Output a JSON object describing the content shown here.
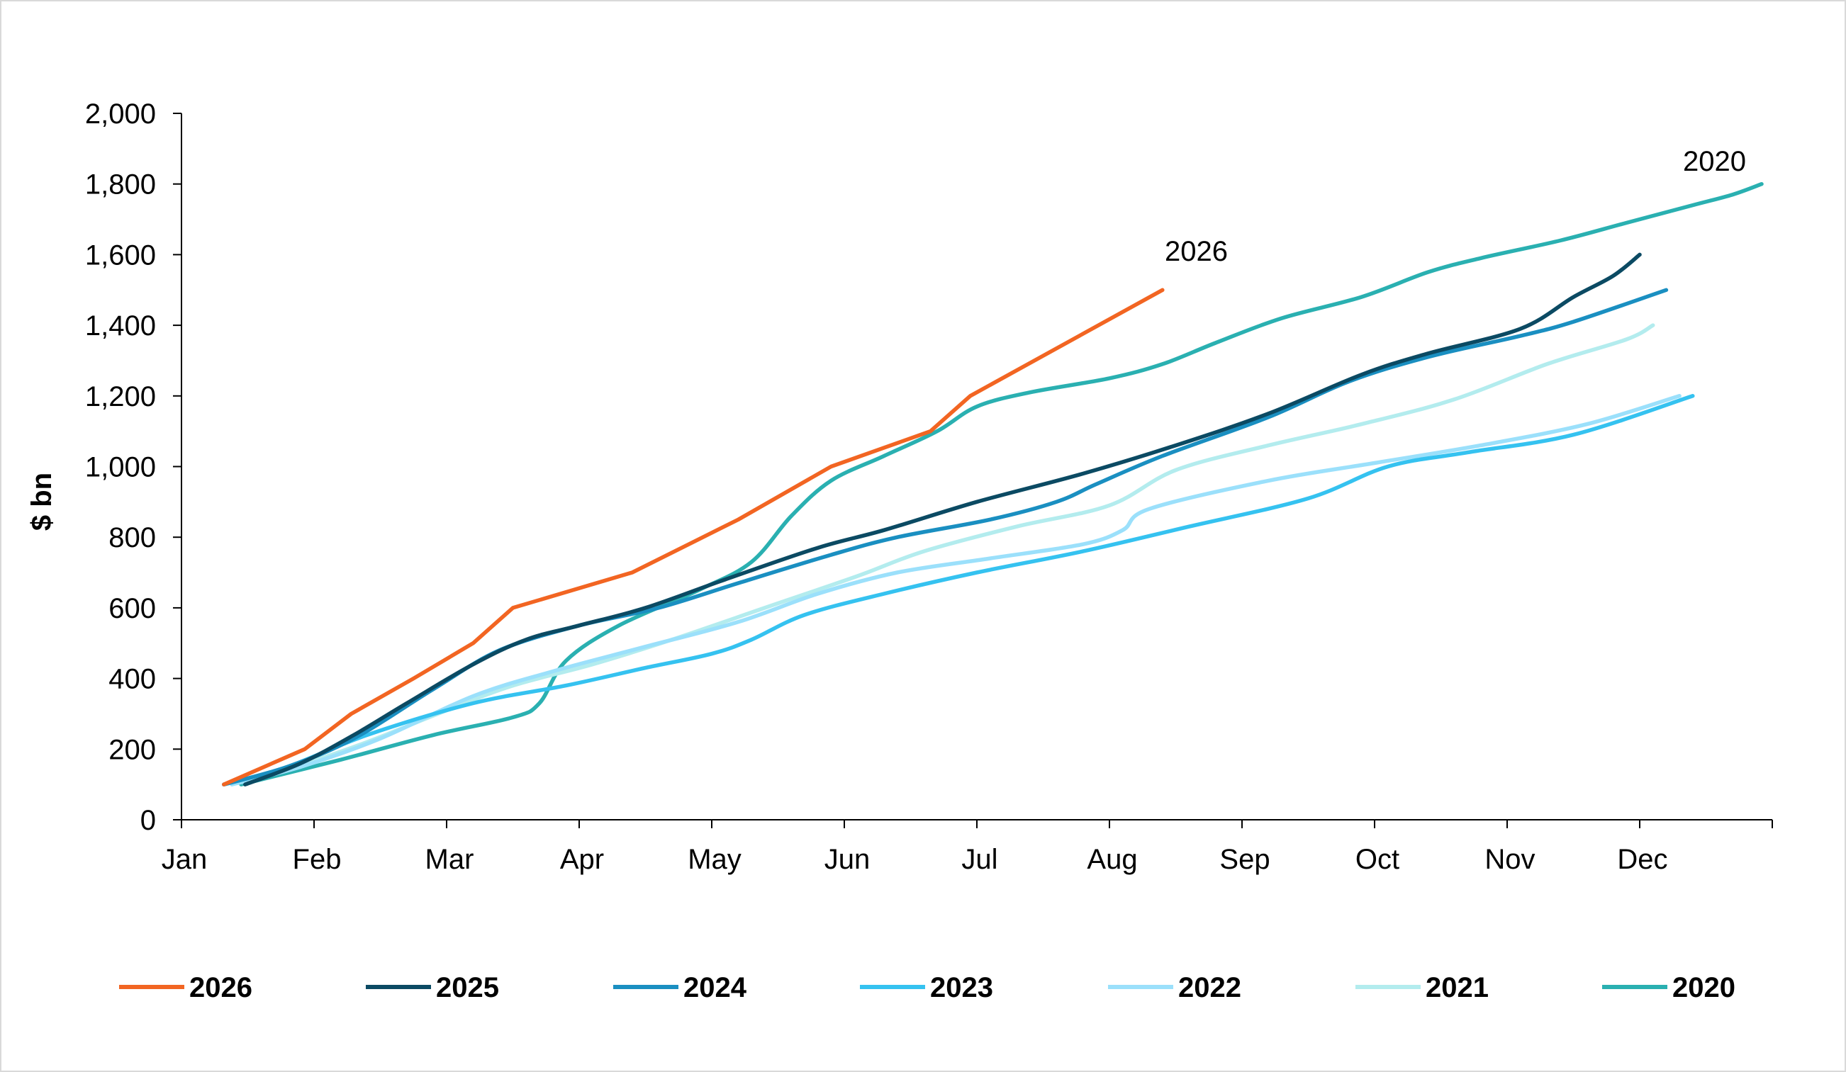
{
  "chart_data": {
    "type": "line",
    "title": "",
    "xlabel": "",
    "ylabel": "$ bn",
    "ylim": [
      0,
      2000
    ],
    "yticks": [
      0,
      200,
      400,
      600,
      800,
      1000,
      1200,
      1400,
      1600,
      1800,
      2000
    ],
    "ytick_labels": [
      "0",
      "200",
      "400",
      "600",
      "800",
      "1,000",
      "1,200",
      "1,400",
      "1,600",
      "1,800",
      "2,000"
    ],
    "xlim": [
      0,
      12
    ],
    "months": [
      "Jan",
      "Feb",
      "Mar",
      "Apr",
      "May",
      "Jun",
      "Jul",
      "Aug",
      "Sep",
      "Oct",
      "Nov",
      "Dec"
    ],
    "grid": false,
    "legend": "bottom",
    "annotations": [
      "2026",
      "2020"
    ],
    "series": [
      {
        "name": "2026",
        "color": "#f26522",
        "smooth": false,
        "points": [
          [
            0.32,
            100
          ],
          [
            0.93,
            200
          ],
          [
            1.28,
            300
          ],
          [
            1.75,
            400
          ],
          [
            2.2,
            500
          ],
          [
            2.5,
            600
          ],
          [
            3.4,
            700
          ],
          [
            4.2,
            850
          ],
          [
            4.9,
            1000
          ],
          [
            5.65,
            1100
          ],
          [
            5.95,
            1200
          ],
          [
            7.4,
            1500
          ]
        ]
      },
      {
        "name": "2025",
        "color": "#0b4a63",
        "smooth": true,
        "points": [
          [
            0.48,
            100
          ],
          [
            0.9,
            160
          ],
          [
            1.3,
            240
          ],
          [
            1.7,
            330
          ],
          [
            2.2,
            440
          ],
          [
            2.6,
            510
          ],
          [
            3.0,
            550
          ],
          [
            3.5,
            600
          ],
          [
            4.1,
            680
          ],
          [
            4.8,
            770
          ],
          [
            5.3,
            820
          ],
          [
            6.0,
            900
          ],
          [
            6.8,
            980
          ],
          [
            7.5,
            1060
          ],
          [
            8.2,
            1150
          ],
          [
            8.9,
            1260
          ],
          [
            9.4,
            1320
          ],
          [
            10.1,
            1390
          ],
          [
            10.5,
            1480
          ],
          [
            10.8,
            1540
          ],
          [
            11.0,
            1600
          ]
        ]
      },
      {
        "name": "2024",
        "color": "#1a8fc1",
        "smooth": true,
        "points": [
          [
            0.32,
            100
          ],
          [
            0.8,
            150
          ],
          [
            1.3,
            230
          ],
          [
            1.9,
            370
          ],
          [
            2.4,
            480
          ],
          [
            3.0,
            550
          ],
          [
            3.6,
            600
          ],
          [
            4.2,
            670
          ],
          [
            4.9,
            750
          ],
          [
            5.4,
            800
          ],
          [
            6.1,
            850
          ],
          [
            6.6,
            900
          ],
          [
            6.9,
            950
          ],
          [
            7.4,
            1030
          ],
          [
            8.2,
            1140
          ],
          [
            8.8,
            1240
          ],
          [
            9.4,
            1310
          ],
          [
            10.1,
            1370
          ],
          [
            10.5,
            1410
          ],
          [
            11.2,
            1500
          ]
        ]
      },
      {
        "name": "2023",
        "color": "#35c2f0",
        "smooth": true,
        "points": [
          [
            0.32,
            100
          ],
          [
            0.8,
            150
          ],
          [
            1.4,
            240
          ],
          [
            2.2,
            330
          ],
          [
            2.9,
            380
          ],
          [
            3.5,
            430
          ],
          [
            4.0,
            470
          ],
          [
            4.3,
            510
          ],
          [
            4.7,
            580
          ],
          [
            5.3,
            640
          ],
          [
            6.0,
            700
          ],
          [
            6.8,
            760
          ],
          [
            7.6,
            830
          ],
          [
            8.5,
            910
          ],
          [
            9.1,
            1000
          ],
          [
            9.7,
            1040
          ],
          [
            10.5,
            1090
          ],
          [
            11.4,
            1200
          ]
        ]
      },
      {
        "name": "2022",
        "color": "#9be0fb",
        "smooth": true,
        "points": [
          [
            0.38,
            100
          ],
          [
            0.9,
            150
          ],
          [
            1.5,
            230
          ],
          [
            2.2,
            350
          ],
          [
            2.8,
            420
          ],
          [
            3.5,
            490
          ],
          [
            4.2,
            560
          ],
          [
            4.8,
            640
          ],
          [
            5.4,
            700
          ],
          [
            6.1,
            740
          ],
          [
            6.8,
            780
          ],
          [
            7.1,
            820
          ],
          [
            7.3,
            880
          ],
          [
            8.2,
            960
          ],
          [
            9.0,
            1010
          ],
          [
            9.8,
            1060
          ],
          [
            10.6,
            1120
          ],
          [
            11.3,
            1200
          ]
        ]
      },
      {
        "name": "2021",
        "color": "#b3ecee",
        "smooth": true,
        "points": [
          [
            0.32,
            100
          ],
          [
            0.85,
            150
          ],
          [
            1.4,
            220
          ],
          [
            2.0,
            310
          ],
          [
            2.5,
            380
          ],
          [
            3.1,
            440
          ],
          [
            3.7,
            510
          ],
          [
            4.4,
            600
          ],
          [
            5.1,
            690
          ],
          [
            5.6,
            760
          ],
          [
            6.3,
            830
          ],
          [
            7.0,
            890
          ],
          [
            7.5,
            990
          ],
          [
            8.2,
            1060
          ],
          [
            8.9,
            1120
          ],
          [
            9.6,
            1190
          ],
          [
            10.3,
            1290
          ],
          [
            10.9,
            1360
          ],
          [
            11.1,
            1400
          ]
        ]
      },
      {
        "name": "2020",
        "color": "#2ab0b1",
        "smooth": true,
        "points": [
          [
            0.45,
            100
          ],
          [
            1.2,
            170
          ],
          [
            1.9,
            240
          ],
          [
            2.5,
            290
          ],
          [
            2.7,
            330
          ],
          [
            2.9,
            450
          ],
          [
            3.3,
            550
          ],
          [
            3.9,
            650
          ],
          [
            4.3,
            730
          ],
          [
            4.6,
            860
          ],
          [
            4.9,
            960
          ],
          [
            5.3,
            1030
          ],
          [
            5.7,
            1100
          ],
          [
            6.0,
            1170
          ],
          [
            6.4,
            1210
          ],
          [
            7.0,
            1250
          ],
          [
            7.4,
            1290
          ],
          [
            7.8,
            1350
          ],
          [
            8.3,
            1420
          ],
          [
            8.9,
            1480
          ],
          [
            9.4,
            1550
          ],
          [
            9.8,
            1590
          ],
          [
            10.4,
            1640
          ],
          [
            10.9,
            1690
          ],
          [
            11.4,
            1740
          ],
          [
            11.7,
            1770
          ],
          [
            11.92,
            1800
          ]
        ]
      }
    ]
  }
}
